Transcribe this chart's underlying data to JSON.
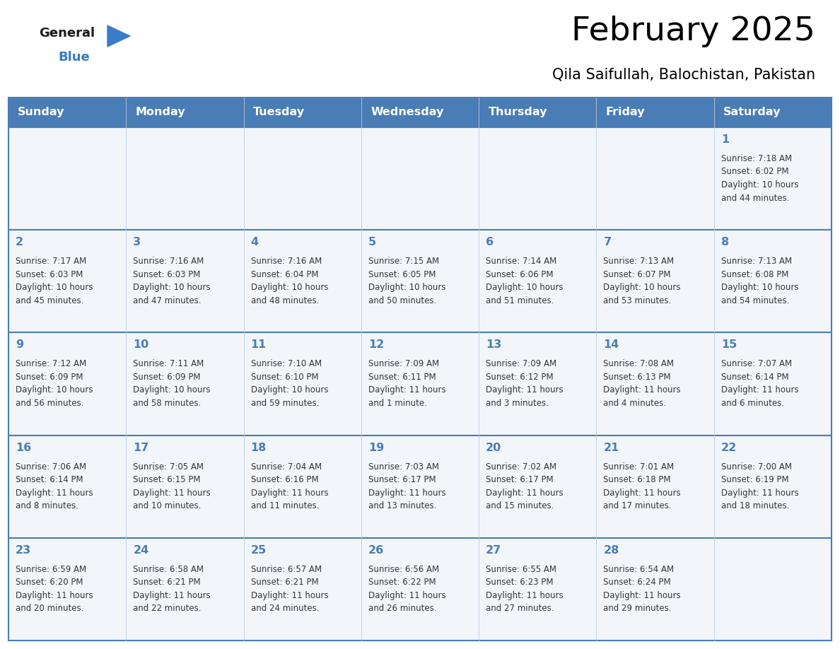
{
  "title": "February 2025",
  "subtitle": "Qila Saifullah, Balochistan, Pakistan",
  "days_of_week": [
    "Sunday",
    "Monday",
    "Tuesday",
    "Wednesday",
    "Thursday",
    "Friday",
    "Saturday"
  ],
  "header_bg": "#4a7cb5",
  "header_text": "#ffffff",
  "row_bg": "#f2f6fb",
  "cell_border": "#4a7cb5",
  "grid_line": "#b8cce4",
  "day_num_color": "#4a7cb5",
  "text_color": "#333333",
  "logo_general_color": "#1a1a1a",
  "logo_blue_color": "#3a7cc7",
  "calendar_data": [
    [
      {
        "day": 0,
        "info": ""
      },
      {
        "day": 0,
        "info": ""
      },
      {
        "day": 0,
        "info": ""
      },
      {
        "day": 0,
        "info": ""
      },
      {
        "day": 0,
        "info": ""
      },
      {
        "day": 0,
        "info": ""
      },
      {
        "day": 1,
        "info": "Sunrise: 7:18 AM\nSunset: 6:02 PM\nDaylight: 10 hours\nand 44 minutes."
      }
    ],
    [
      {
        "day": 2,
        "info": "Sunrise: 7:17 AM\nSunset: 6:03 PM\nDaylight: 10 hours\nand 45 minutes."
      },
      {
        "day": 3,
        "info": "Sunrise: 7:16 AM\nSunset: 6:03 PM\nDaylight: 10 hours\nand 47 minutes."
      },
      {
        "day": 4,
        "info": "Sunrise: 7:16 AM\nSunset: 6:04 PM\nDaylight: 10 hours\nand 48 minutes."
      },
      {
        "day": 5,
        "info": "Sunrise: 7:15 AM\nSunset: 6:05 PM\nDaylight: 10 hours\nand 50 minutes."
      },
      {
        "day": 6,
        "info": "Sunrise: 7:14 AM\nSunset: 6:06 PM\nDaylight: 10 hours\nand 51 minutes."
      },
      {
        "day": 7,
        "info": "Sunrise: 7:13 AM\nSunset: 6:07 PM\nDaylight: 10 hours\nand 53 minutes."
      },
      {
        "day": 8,
        "info": "Sunrise: 7:13 AM\nSunset: 6:08 PM\nDaylight: 10 hours\nand 54 minutes."
      }
    ],
    [
      {
        "day": 9,
        "info": "Sunrise: 7:12 AM\nSunset: 6:09 PM\nDaylight: 10 hours\nand 56 minutes."
      },
      {
        "day": 10,
        "info": "Sunrise: 7:11 AM\nSunset: 6:09 PM\nDaylight: 10 hours\nand 58 minutes."
      },
      {
        "day": 11,
        "info": "Sunrise: 7:10 AM\nSunset: 6:10 PM\nDaylight: 10 hours\nand 59 minutes."
      },
      {
        "day": 12,
        "info": "Sunrise: 7:09 AM\nSunset: 6:11 PM\nDaylight: 11 hours\nand 1 minute."
      },
      {
        "day": 13,
        "info": "Sunrise: 7:09 AM\nSunset: 6:12 PM\nDaylight: 11 hours\nand 3 minutes."
      },
      {
        "day": 14,
        "info": "Sunrise: 7:08 AM\nSunset: 6:13 PM\nDaylight: 11 hours\nand 4 minutes."
      },
      {
        "day": 15,
        "info": "Sunrise: 7:07 AM\nSunset: 6:14 PM\nDaylight: 11 hours\nand 6 minutes."
      }
    ],
    [
      {
        "day": 16,
        "info": "Sunrise: 7:06 AM\nSunset: 6:14 PM\nDaylight: 11 hours\nand 8 minutes."
      },
      {
        "day": 17,
        "info": "Sunrise: 7:05 AM\nSunset: 6:15 PM\nDaylight: 11 hours\nand 10 minutes."
      },
      {
        "day": 18,
        "info": "Sunrise: 7:04 AM\nSunset: 6:16 PM\nDaylight: 11 hours\nand 11 minutes."
      },
      {
        "day": 19,
        "info": "Sunrise: 7:03 AM\nSunset: 6:17 PM\nDaylight: 11 hours\nand 13 minutes."
      },
      {
        "day": 20,
        "info": "Sunrise: 7:02 AM\nSunset: 6:17 PM\nDaylight: 11 hours\nand 15 minutes."
      },
      {
        "day": 21,
        "info": "Sunrise: 7:01 AM\nSunset: 6:18 PM\nDaylight: 11 hours\nand 17 minutes."
      },
      {
        "day": 22,
        "info": "Sunrise: 7:00 AM\nSunset: 6:19 PM\nDaylight: 11 hours\nand 18 minutes."
      }
    ],
    [
      {
        "day": 23,
        "info": "Sunrise: 6:59 AM\nSunset: 6:20 PM\nDaylight: 11 hours\nand 20 minutes."
      },
      {
        "day": 24,
        "info": "Sunrise: 6:58 AM\nSunset: 6:21 PM\nDaylight: 11 hours\nand 22 minutes."
      },
      {
        "day": 25,
        "info": "Sunrise: 6:57 AM\nSunset: 6:21 PM\nDaylight: 11 hours\nand 24 minutes."
      },
      {
        "day": 26,
        "info": "Sunrise: 6:56 AM\nSunset: 6:22 PM\nDaylight: 11 hours\nand 26 minutes."
      },
      {
        "day": 27,
        "info": "Sunrise: 6:55 AM\nSunset: 6:23 PM\nDaylight: 11 hours\nand 27 minutes."
      },
      {
        "day": 28,
        "info": "Sunrise: 6:54 AM\nSunset: 6:24 PM\nDaylight: 11 hours\nand 29 minutes."
      },
      {
        "day": 0,
        "info": ""
      }
    ]
  ]
}
